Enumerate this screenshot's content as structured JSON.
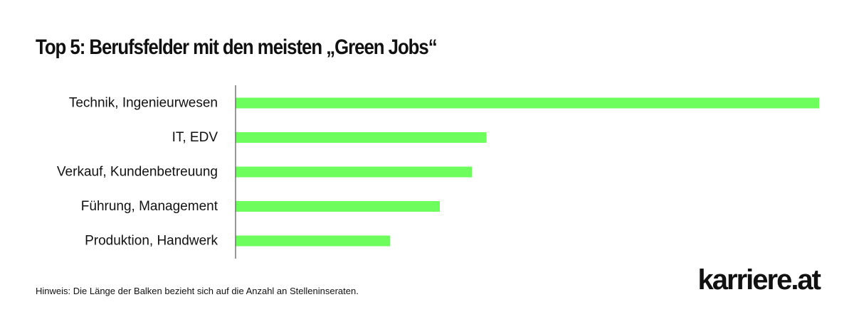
{
  "title": "Top 5: Berufsfelder mit den meisten „Green Jobs“",
  "note": "Hinweis: Die Länge der Balken bezieht sich auf die Anzahl an Stelleninseraten.",
  "logo": "karriere.at",
  "colors": {
    "bar": "#6dfd5c",
    "axis": "#555555",
    "text": "#111111"
  },
  "chart_data": {
    "type": "bar",
    "orientation": "horizontal",
    "categories": [
      "Technik, Ingenieurwesen",
      "IT, EDV",
      "Verkauf, Kundenbetreuung",
      "Führung, Management",
      "Produktion, Handwerk"
    ],
    "values": [
      100,
      43,
      40.5,
      35,
      26.5
    ],
    "xlim": [
      0,
      100
    ],
    "xlabel": "",
    "ylabel": "",
    "grid": false,
    "axis_values_shown": false
  }
}
